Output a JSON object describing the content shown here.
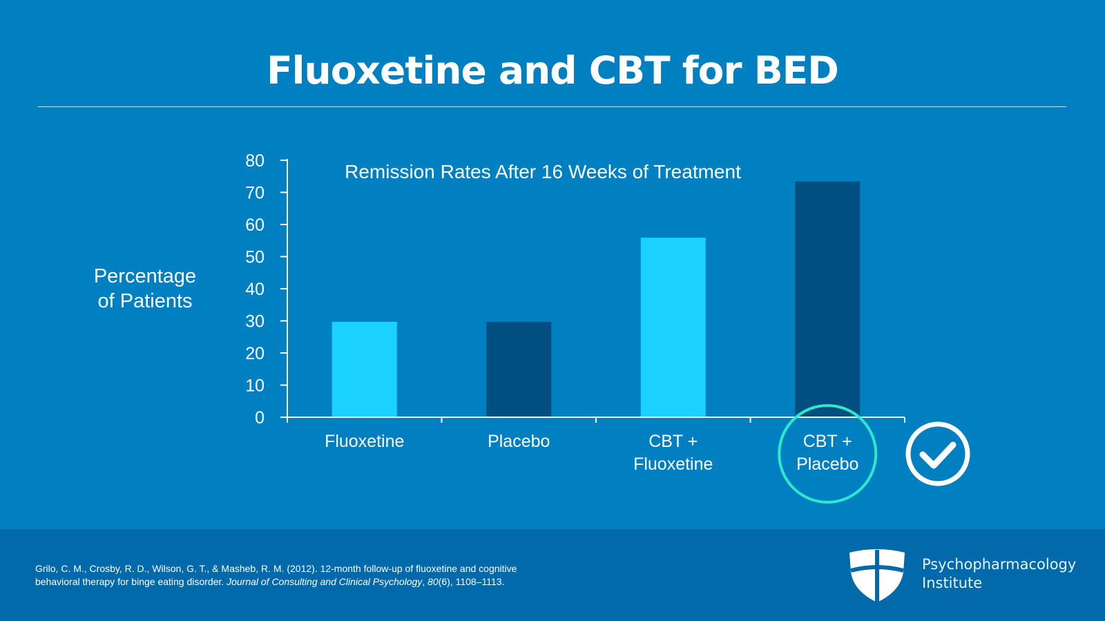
{
  "slide": {
    "title": "Fluoxetine and CBT for BED"
  },
  "chart_data": {
    "type": "bar",
    "title": "Remission Rates After 16 Weeks of Treatment",
    "ylabel_line1": "Percentage",
    "ylabel_line2": "of Patients",
    "xlabel": "",
    "ylim": [
      0,
      80
    ],
    "yticks": [
      "0",
      "10",
      "20",
      "30",
      "40",
      "50",
      "60",
      "70",
      "80"
    ],
    "categories": [
      [
        "Fluoxetine"
      ],
      [
        "Placebo"
      ],
      [
        "CBT +",
        "Fluoxetine"
      ],
      [
        "CBT +",
        "Placebo"
      ]
    ],
    "values": [
      29.7,
      29.7,
      55.9,
      73.4
    ],
    "bar_colors": [
      "#1ad1ff",
      "#004f80",
      "#1ad1ff",
      "#004f80"
    ],
    "highlight_index": 3,
    "highlight_color": "#2ee8cc",
    "checkmark_icon": "check-circle-icon",
    "grid": false,
    "legend": "none"
  },
  "footer": {
    "citation_line1": "Grilo, C. M., Crosby, R. D., Wilson, G. T., & Masheb, R. M. (2012). 12-month follow-up of fluoxetine and cognitive",
    "citation_line2_pre": "behavioral therapy for binge eating disorder. ",
    "journal": "Journal of Consulting and Clinical Psychology",
    "sep1": ", ",
    "volume": "80",
    "issue_pages": "(6), 1108–1113.",
    "org_line1": "Psychopharmacology",
    "org_line2": "Institute",
    "logo_icon": "shield-logo-icon"
  }
}
